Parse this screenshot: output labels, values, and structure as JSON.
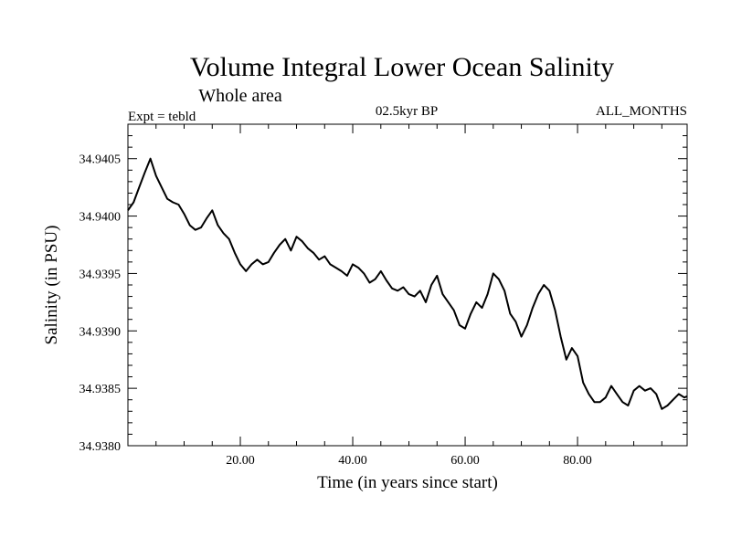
{
  "chart_data": {
    "type": "line",
    "title": "Volume Integral Lower Ocean Salinity",
    "subtitle": "Whole area",
    "header_left": "Expt = tebld",
    "header_center": "02.5kyr BP",
    "header_right": "ALL_MONTHS",
    "xlabel": "Time (in years since start)",
    "ylabel": "Salinity (in PSU)",
    "xlim": [
      0,
      99.5
    ],
    "ylim": [
      34.938,
      34.9408
    ],
    "xticks": [
      20,
      40,
      60,
      80
    ],
    "xtick_labels": [
      "20.00",
      "40.00",
      "60.00",
      "80.00"
    ],
    "yticks": [
      34.938,
      34.9385,
      34.939,
      34.9395,
      34.94,
      34.9405
    ],
    "ytick_labels": [
      "34.9380",
      "34.9385",
      "34.9390",
      "34.9395",
      "34.9400",
      "34.9405"
    ],
    "grid": false,
    "series": [
      {
        "name": "salinity",
        "x": [
          0,
          1,
          2,
          3,
          4,
          5,
          6,
          7,
          8,
          9,
          10,
          11,
          12,
          13,
          14,
          15,
          16,
          17,
          18,
          19,
          20,
          21,
          22,
          23,
          24,
          25,
          26,
          27,
          28,
          29,
          30,
          31,
          32,
          33,
          34,
          35,
          36,
          37,
          38,
          39,
          40,
          41,
          42,
          43,
          44,
          45,
          46,
          47,
          48,
          49,
          50,
          51,
          52,
          53,
          54,
          55,
          56,
          57,
          58,
          59,
          60,
          61,
          62,
          63,
          64,
          65,
          66,
          67,
          68,
          69,
          70,
          71,
          72,
          73,
          74,
          75,
          76,
          77,
          78,
          79,
          80,
          81,
          82,
          83,
          84,
          85,
          86,
          87,
          88,
          89,
          90,
          91,
          92,
          93,
          94,
          95,
          96,
          97,
          98,
          99,
          99.5
        ],
        "values": [
          34.94005,
          34.94012,
          34.94025,
          34.94038,
          34.9405,
          34.94035,
          34.94025,
          34.94015,
          34.94012,
          34.9401,
          34.94002,
          34.93992,
          34.93988,
          34.9399,
          34.93998,
          34.94005,
          34.93992,
          34.93985,
          34.9398,
          34.93968,
          34.93958,
          34.93952,
          34.93958,
          34.93962,
          34.93958,
          34.9396,
          34.93968,
          34.93975,
          34.9398,
          34.9397,
          34.93982,
          34.93978,
          34.93972,
          34.93968,
          34.93962,
          34.93965,
          34.93958,
          34.93955,
          34.93952,
          34.93948,
          34.93958,
          34.93955,
          34.9395,
          34.93942,
          34.93945,
          34.93952,
          34.93944,
          34.93937,
          34.93935,
          34.93938,
          34.93932,
          34.9393,
          34.93935,
          34.93925,
          34.9394,
          34.93948,
          34.93932,
          34.93925,
          34.93918,
          34.93905,
          34.93902,
          34.93915,
          34.93925,
          34.9392,
          34.93932,
          34.9395,
          34.93945,
          34.93935,
          34.93915,
          34.93908,
          34.93895,
          34.93905,
          34.9392,
          34.93932,
          34.9394,
          34.93935,
          34.93918,
          34.93895,
          34.93875,
          34.93885,
          34.93878,
          34.93855,
          34.93845,
          34.93838,
          34.93838,
          34.93842,
          34.93852,
          34.93845,
          34.93838,
          34.93835,
          34.93848,
          34.93852,
          34.93848,
          34.9385,
          34.93845,
          34.93832,
          34.93835,
          34.9384,
          34.93845,
          34.93842,
          34.93843
        ]
      }
    ]
  }
}
